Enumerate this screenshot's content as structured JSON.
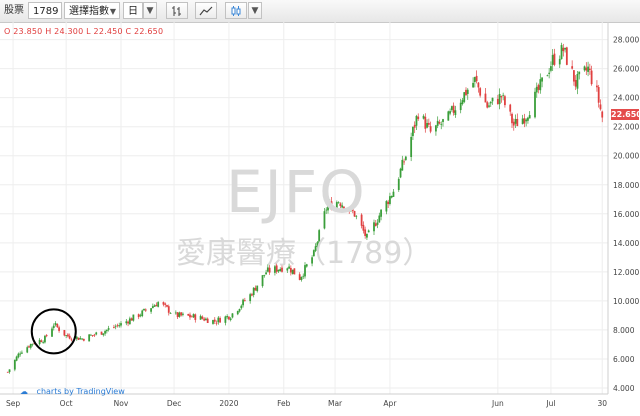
{
  "toolbar": {
    "type_label": "股票",
    "symbol": "1789",
    "indicator": "選擇指數",
    "interval": "日"
  },
  "ohlc": {
    "o": "23.850",
    "h": "24.300",
    "l": "22.450",
    "c": "22.650",
    "o_label": "O",
    "h_label": "H",
    "l_label": "L",
    "c_label": "C"
  },
  "watermark": {
    "ticker": "EJFO",
    "name": "愛康醫療（1789）"
  },
  "attribution": {
    "prefix": "charts by",
    "brand": "TradingView"
  },
  "colors": {
    "up": "#3a9e3a",
    "down": "#e04040",
    "grid": "#eeeeee",
    "price_tag": "#e44b4b",
    "annotation": "#000000"
  },
  "annotation": {
    "shape": "ellipse",
    "center": [
      "2019-09-24",
      7.9
    ]
  },
  "chart_data": {
    "type": "candlestick",
    "y_axis_position": "right",
    "ylim": [
      4,
      28.8
    ],
    "y_ticks": [
      4,
      6,
      8,
      10,
      12,
      14,
      16,
      18,
      20,
      22,
      24,
      26,
      28
    ],
    "y_tick_labels": [
      "4.000",
      "6.000",
      "8.000",
      "10.000",
      "12.000",
      "14.000",
      "16.000",
      "18.000",
      "20.000",
      "22.000",
      "24.000",
      "26.000",
      "28.000"
    ],
    "x_range": [
      "2019-08-28",
      "2020-07-31"
    ],
    "x_ticks": [
      {
        "date": "2019-09-01",
        "label": "Sep"
      },
      {
        "date": "2019-10-01",
        "label": "Oct"
      },
      {
        "date": "2019-11-01",
        "label": "Nov"
      },
      {
        "date": "2019-12-01",
        "label": "Dec"
      },
      {
        "date": "2020-01-01",
        "label": "2020"
      },
      {
        "date": "2020-02-01",
        "label": "Feb"
      },
      {
        "date": "2020-03-01",
        "label": "Mar"
      },
      {
        "date": "2020-04-01",
        "label": "Apr"
      },
      {
        "date": "2020-06-01",
        "label": "Jun"
      },
      {
        "date": "2020-07-01",
        "label": "Jul"
      },
      {
        "date": "2020-07-30",
        "label": "30"
      }
    ],
    "last_price": "22.650",
    "grid": true,
    "approx_close_path": [
      [
        "2019-08-29",
        5.1
      ],
      [
        "2019-09-05",
        6.5
      ],
      [
        "2019-09-12",
        7.1
      ],
      [
        "2019-09-19",
        7.4
      ],
      [
        "2019-09-24",
        8.4
      ],
      [
        "2019-10-01",
        7.6
      ],
      [
        "2019-10-10",
        7.4
      ],
      [
        "2019-10-22",
        7.9
      ],
      [
        "2019-11-01",
        8.4
      ],
      [
        "2019-11-12",
        9.1
      ],
      [
        "2019-11-22",
        9.9
      ],
      [
        "2019-12-02",
        9.0
      ],
      [
        "2019-12-13",
        8.9
      ],
      [
        "2019-12-24",
        8.6
      ],
      [
        "2020-01-02",
        9.0
      ],
      [
        "2020-01-13",
        10.4
      ],
      [
        "2020-01-22",
        12.0
      ],
      [
        "2020-02-03",
        12.4
      ],
      [
        "2020-02-10",
        11.6
      ],
      [
        "2020-02-18",
        13.2
      ],
      [
        "2020-02-25",
        16.4
      ],
      [
        "2020-03-03",
        16.9
      ],
      [
        "2020-03-12",
        16.0
      ],
      [
        "2020-03-19",
        14.3
      ],
      [
        "2020-03-26",
        15.9
      ],
      [
        "2020-04-03",
        17.6
      ],
      [
        "2020-04-10",
        20.0
      ],
      [
        "2020-04-17",
        23.0
      ],
      [
        "2020-04-24",
        21.6
      ],
      [
        "2020-05-04",
        22.6
      ],
      [
        "2020-05-12",
        24.1
      ],
      [
        "2020-05-19",
        25.2
      ],
      [
        "2020-05-26",
        23.4
      ],
      [
        "2020-06-03",
        24.1
      ],
      [
        "2020-06-10",
        22.1
      ],
      [
        "2020-06-17",
        22.8
      ],
      [
        "2020-06-24",
        24.5
      ],
      [
        "2020-07-02",
        26.6
      ],
      [
        "2020-07-08",
        27.3
      ],
      [
        "2020-07-15",
        25.0
      ],
      [
        "2020-07-22",
        26.0
      ],
      [
        "2020-07-27",
        24.3
      ],
      [
        "2020-07-30",
        22.65
      ]
    ]
  }
}
